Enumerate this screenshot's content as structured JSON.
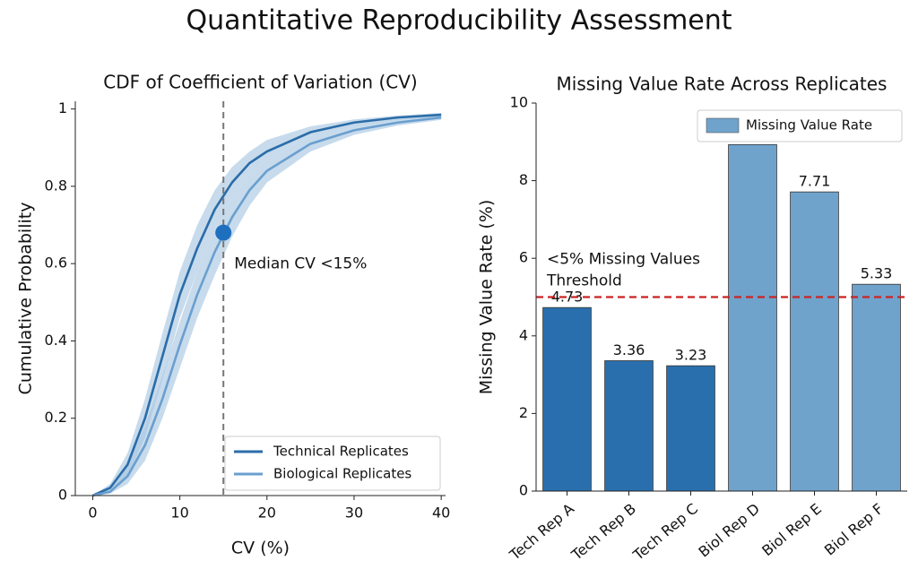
{
  "title": "Quantitative Reproducibility Assessment",
  "chart_data": [
    {
      "type": "line",
      "title": "CDF of Coefficient of Variation (CV)",
      "x_label": "CV (%)",
      "y_label": "Cumulative Probability",
      "x": [
        0,
        2,
        4,
        6,
        8,
        10,
        12,
        14,
        16,
        18,
        20,
        25,
        30,
        35,
        40
      ],
      "series": [
        {
          "name": "Technical Replicates",
          "color": "#2b6ca8",
          "values": [
            0,
            0.02,
            0.08,
            0.2,
            0.36,
            0.52,
            0.64,
            0.74,
            0.81,
            0.86,
            0.89,
            0.94,
            0.965,
            0.978,
            0.985
          ],
          "lower": [
            0,
            0.01,
            0.05,
            0.15,
            0.3,
            0.46,
            0.58,
            0.69,
            0.77,
            0.83,
            0.87,
            0.93,
            0.957,
            0.972,
            0.98
          ],
          "upper": [
            0,
            0.03,
            0.11,
            0.25,
            0.42,
            0.58,
            0.7,
            0.79,
            0.85,
            0.89,
            0.92,
            0.955,
            0.973,
            0.983,
            0.99
          ]
        },
        {
          "name": "Biological Replicates",
          "color": "#6a9fcf",
          "values": [
            0,
            0.01,
            0.05,
            0.13,
            0.25,
            0.39,
            0.52,
            0.63,
            0.72,
            0.79,
            0.84,
            0.91,
            0.945,
            0.965,
            0.978
          ],
          "lower": [
            0,
            0.005,
            0.03,
            0.09,
            0.2,
            0.33,
            0.46,
            0.57,
            0.67,
            0.75,
            0.81,
            0.89,
            0.933,
            0.957,
            0.972
          ],
          "upper": [
            0,
            0.02,
            0.08,
            0.18,
            0.31,
            0.45,
            0.58,
            0.69,
            0.77,
            0.83,
            0.87,
            0.93,
            0.958,
            0.973,
            0.984
          ]
        }
      ],
      "band_color": "#a9c8e2",
      "vline": {
        "x": 15,
        "color": "#777777"
      },
      "marker": {
        "x": 15,
        "y": 0.68,
        "color": "#1f6fbf",
        "text": "Median CV <15%"
      },
      "xlim": [
        -2,
        40.5
      ],
      "xticks": [
        0,
        10,
        20,
        30,
        40
      ],
      "ylim": [
        0,
        1.02
      ],
      "yticks": [
        0,
        0.2,
        0.4,
        0.6,
        0.8,
        1
      ],
      "legend": "lower right"
    },
    {
      "type": "bar",
      "title": "Missing Value Rate Across Replicates",
      "y_label": "Missing Value Rate (%)",
      "categories": [
        "Tech Rep A",
        "Tech Rep B",
        "Tech Rep C",
        "Biol Rep D",
        "Biol Rep E",
        "Biol Rep F"
      ],
      "series": [
        {
          "name": "Missing Value Rate",
          "color": "#6fa3cc",
          "values": [
            4.73,
            3.36,
            3.23,
            8.93,
            7.71,
            5.33
          ],
          "colors": [
            "#2a6fad",
            "#2a6fad",
            "#2a6fad",
            "#6fa3cc",
            "#6fa3cc",
            "#6fa3cc"
          ]
        }
      ],
      "hline": {
        "y": 5,
        "color": "#cc2222",
        "text": [
          "<5% Missing Values",
          "Threshold"
        ]
      },
      "ylim": [
        0,
        10
      ],
      "yticks": [
        0,
        2,
        4,
        6,
        8,
        10
      ],
      "legend": "upper right"
    }
  ]
}
